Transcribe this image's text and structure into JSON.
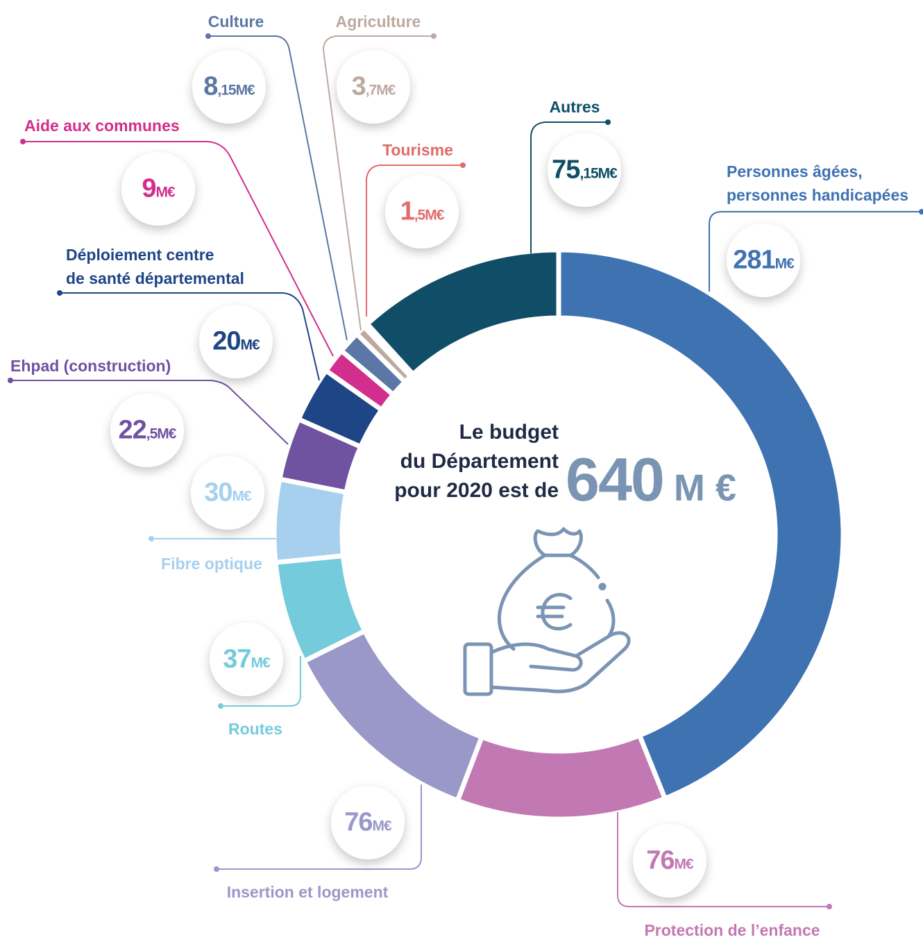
{
  "chart_data": {
    "type": "pie",
    "donut": true,
    "categories": [
      "Personnes âgées,\npersonnes handicapées",
      "Protection de l’enfance",
      "Insertion et logement",
      "Routes",
      "Fibre optique",
      "Ehpad (construction)",
      "Déploiement centre\nde santé  départemental",
      "Aide aux communes",
      "Culture",
      "Agriculture",
      "Tourisme",
      "Autres"
    ],
    "values": [
      281,
      76,
      76,
      37,
      30,
      22.5,
      20,
      9,
      8.15,
      3.7,
      1.5,
      75.15
    ],
    "value_labels": [
      "281M€",
      "76M€",
      "76M€",
      "37M€",
      "30M€",
      "22,5M€",
      "20M€",
      "9M€",
      "8,15M€",
      "3,7M€",
      "1,5M€",
      "75,15M€"
    ],
    "colors": [
      "#3f72b1",
      "#c278b2",
      "#9a98c9",
      "#74cbdc",
      "#a6d0ee",
      "#6f52a0",
      "#1e4585",
      "#d22e8d",
      "#5a77a5",
      "#bcaaa0",
      "#e06b6b",
      "#0f4e66"
    ],
    "center_text": "Le budget\ndu Département\npour 2020 est de",
    "total_label": "640 M €"
  }
}
